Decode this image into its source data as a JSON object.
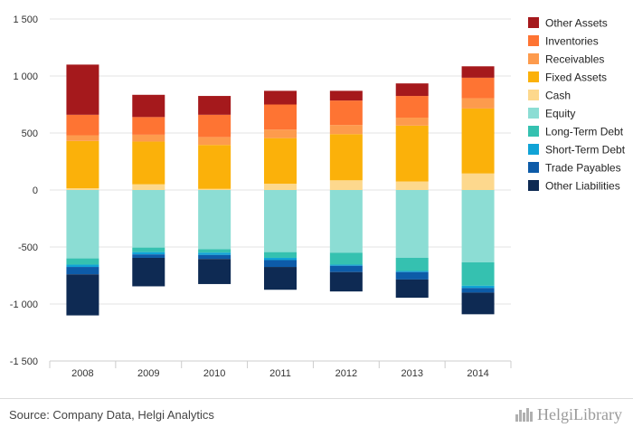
{
  "chart_data": {
    "type": "bar",
    "stacked": true,
    "categories": [
      "2008",
      "2009",
      "2010",
      "2011",
      "2012",
      "2013",
      "2014"
    ],
    "ylim": [
      -1500,
      1500
    ],
    "yticks": [
      1500,
      1000,
      500,
      0,
      -500,
      -1000,
      -1500
    ],
    "ytick_labels": [
      "1 500",
      "1 000",
      "500",
      "0",
      "-500",
      "-1 000",
      "-1 500"
    ],
    "grid": true,
    "legend_position": "right",
    "assets_series": [
      {
        "name": "Cash",
        "color": "#fdd88d",
        "values": [
          15,
          50,
          10,
          55,
          85,
          75,
          145
        ]
      },
      {
        "name": "Fixed Assets",
        "color": "#fbb10a",
        "values": [
          415,
          375,
          385,
          400,
          405,
          490,
          570
        ]
      },
      {
        "name": "Receivables",
        "color": "#fd9b4d",
        "values": [
          50,
          60,
          70,
          75,
          80,
          70,
          90
        ]
      },
      {
        "name": "Inventories",
        "color": "#fe7433",
        "values": [
          180,
          155,
          195,
          220,
          215,
          190,
          180
        ]
      },
      {
        "name": "Other Assets",
        "color": "#a5191c",
        "values": [
          440,
          195,
          165,
          120,
          85,
          110,
          100
        ]
      }
    ],
    "liabilities_series": [
      {
        "name": "Equity",
        "color": "#8cddd4",
        "values": [
          -600,
          -505,
          -520,
          -545,
          -550,
          -595,
          -635
        ]
      },
      {
        "name": "Long-Term Debt",
        "color": "#35c1b0",
        "values": [
          -55,
          -40,
          -30,
          -50,
          -105,
          -115,
          -205
        ]
      },
      {
        "name": "Short-Term Debt",
        "color": "#10a3d6",
        "values": [
          -20,
          -20,
          -20,
          -20,
          -10,
          -10,
          -20
        ]
      },
      {
        "name": "Trade Payables",
        "color": "#0d5ba8",
        "values": [
          -65,
          -30,
          -35,
          -60,
          -55,
          -65,
          -40
        ]
      },
      {
        "name": "Other Liabilities",
        "color": "#0e2a53",
        "values": [
          -360,
          -250,
          -220,
          -200,
          -170,
          -160,
          -190
        ]
      }
    ],
    "legend": [
      {
        "name": "Other Assets",
        "color": "#a5191c"
      },
      {
        "name": "Inventories",
        "color": "#fe7433"
      },
      {
        "name": "Receivables",
        "color": "#fd9b4d"
      },
      {
        "name": "Fixed Assets",
        "color": "#fbb10a"
      },
      {
        "name": "Cash",
        "color": "#fdd88d"
      },
      {
        "name": "Equity",
        "color": "#8cddd4"
      },
      {
        "name": "Long-Term Debt",
        "color": "#35c1b0"
      },
      {
        "name": "Short-Term Debt",
        "color": "#10a3d6"
      },
      {
        "name": "Trade Payables",
        "color": "#0d5ba8"
      },
      {
        "name": "Other Liabilities",
        "color": "#0e2a53"
      }
    ]
  },
  "footer": {
    "source": "Source: Company Data, Helgi Analytics",
    "logo_text": "HelgiLibrary"
  }
}
